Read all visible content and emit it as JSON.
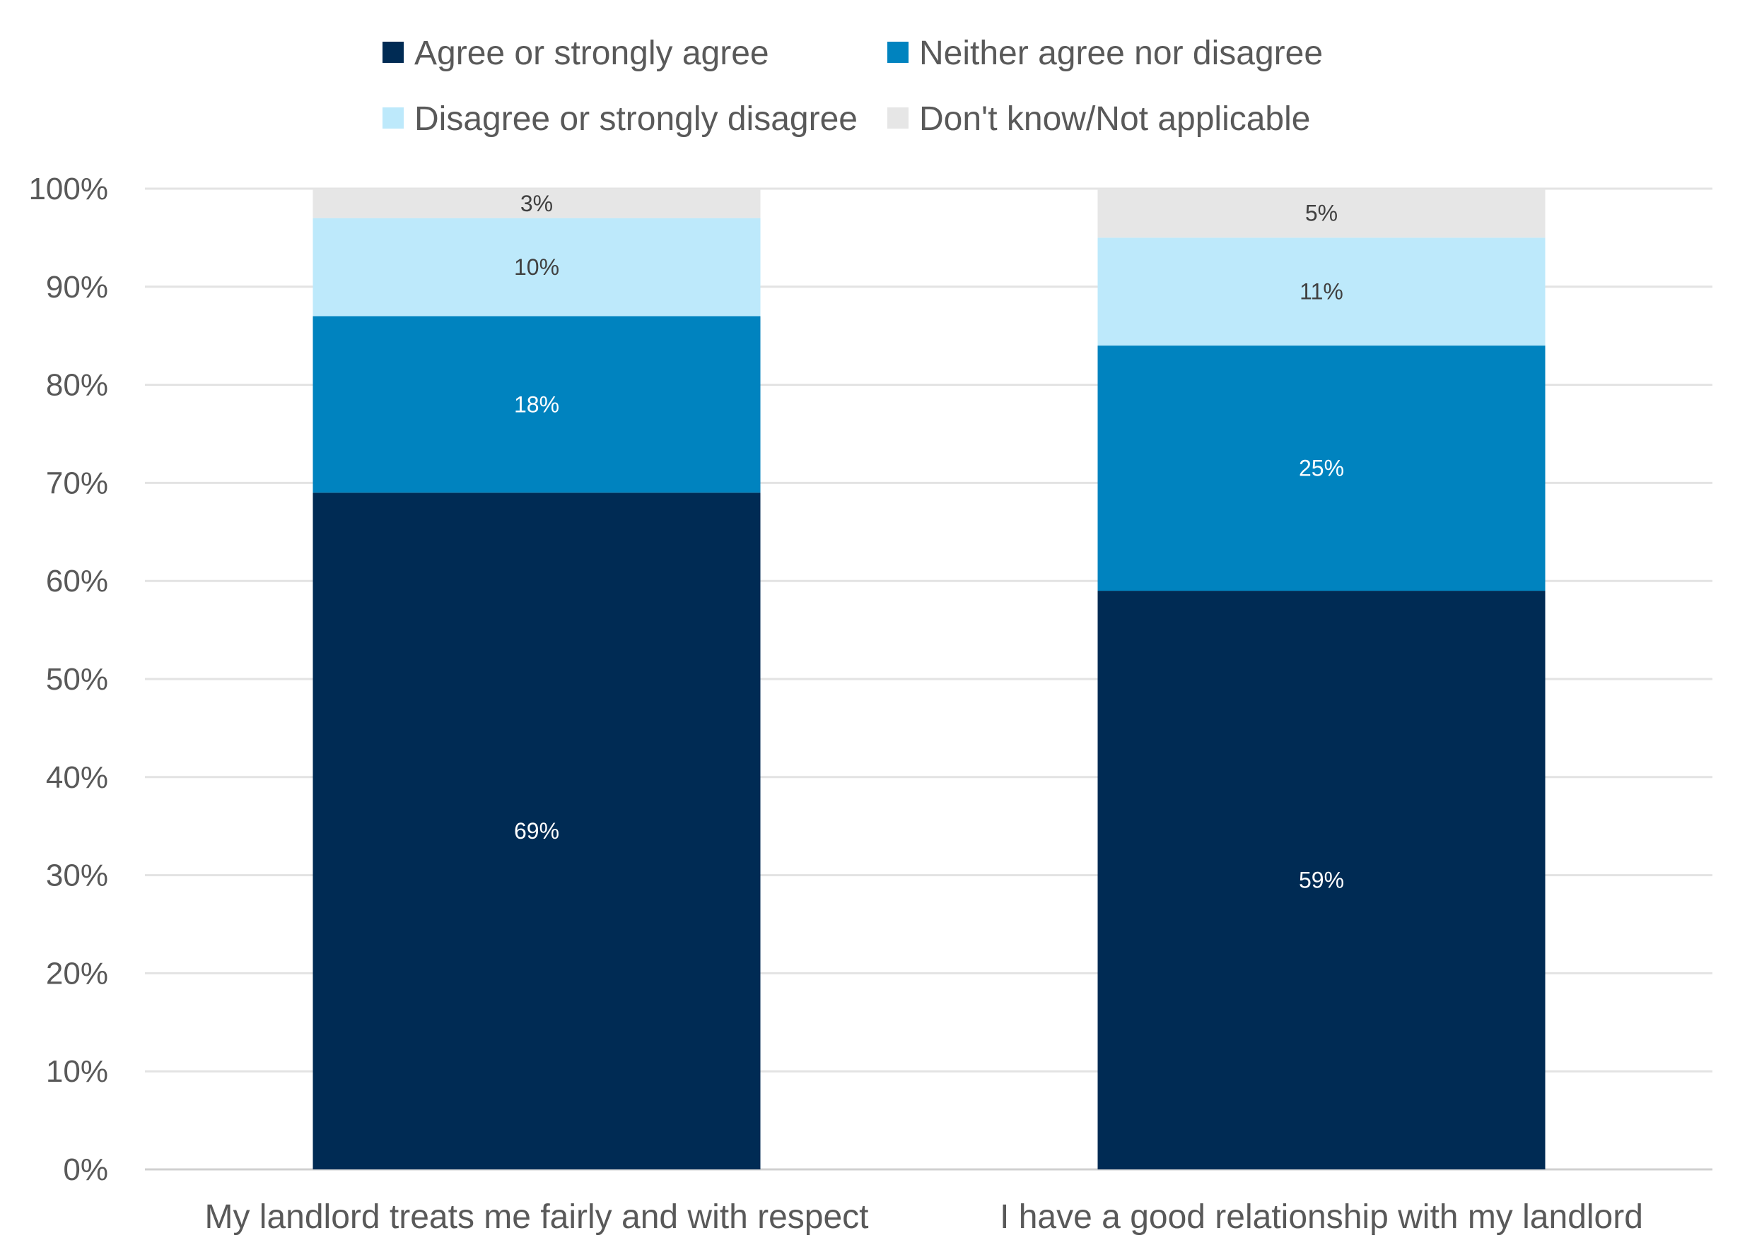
{
  "chart_data": {
    "type": "bar",
    "stacked": true,
    "categories": [
      "My landlord treats me fairly and with respect",
      "I have a good relationship with my landlord"
    ],
    "series": [
      {
        "name": "Agree or strongly agree",
        "values": [
          69,
          59
        ],
        "color": "#002b54",
        "label_color": "#ffffff"
      },
      {
        "name": "Neither agree nor disagree",
        "values": [
          18,
          25
        ],
        "color": "#0083bf",
        "label_color": "#ffffff"
      },
      {
        "name": "Disagree or strongly disagree",
        "values": [
          10,
          11
        ],
        "color": "#bde9fb",
        "label_color": "#404040"
      },
      {
        "name": "Don't know/Not applicable",
        "values": [
          3,
          5
        ],
        "color": "#e6e6e6",
        "label_color": "#404040"
      }
    ],
    "data_labels": [
      [
        "69%",
        "59%"
      ],
      [
        "18%",
        "25%"
      ],
      [
        "10%",
        "11%"
      ],
      [
        "3%",
        "5%"
      ]
    ],
    "ylim": [
      0,
      100
    ],
    "yticks": [
      "0%",
      "10%",
      "20%",
      "30%",
      "40%",
      "50%",
      "60%",
      "70%",
      "80%",
      "90%",
      "100%"
    ],
    "grid": true,
    "legend_position": "top",
    "title": "",
    "xlabel": "",
    "ylabel": ""
  }
}
